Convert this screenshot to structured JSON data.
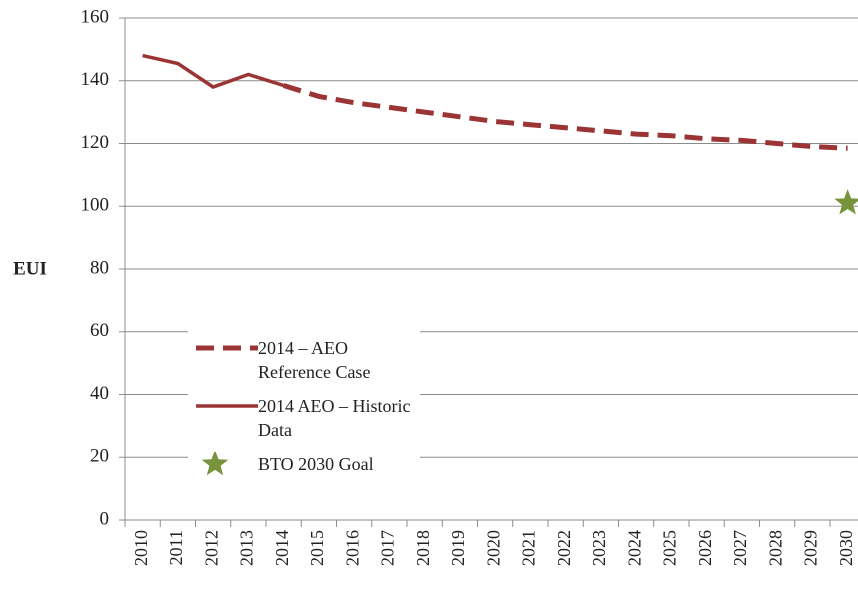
{
  "chart_data": {
    "type": "line",
    "ylabel": "EUI",
    "categories": [
      "2010",
      "2011",
      "2012",
      "2013",
      "2014",
      "2015",
      "2016",
      "2017",
      "2018",
      "2019",
      "2020",
      "2021",
      "2022",
      "2023",
      "2024",
      "2025",
      "2026",
      "2027",
      "2028",
      "2029",
      "2030"
    ],
    "series": [
      {
        "name": "2014 – AEO Reference Case",
        "color": "#9b3535",
        "dash": true,
        "values": [
          null,
          null,
          null,
          null,
          138.5,
          135,
          133,
          131.5,
          130,
          128.5,
          127,
          126,
          125,
          124,
          123,
          122.5,
          121.5,
          121,
          120,
          119,
          118.5
        ]
      },
      {
        "name": "2014 AEO – Historic Data",
        "color": "#9b3535",
        "dash": false,
        "values": [
          148,
          145.5,
          138,
          142,
          138.5,
          null,
          null,
          null,
          null,
          null,
          null,
          null,
          null,
          null,
          null,
          null,
          null,
          null,
          null,
          null,
          null
        ]
      },
      {
        "name": "BTO 2030 Goal",
        "color": "#77933c",
        "marker": "star",
        "values": [
          null,
          null,
          null,
          null,
          null,
          null,
          null,
          null,
          null,
          null,
          null,
          null,
          null,
          null,
          null,
          null,
          null,
          null,
          null,
          null,
          101
        ]
      }
    ],
    "ylim": [
      0,
      160
    ],
    "yticks": [
      0,
      20,
      40,
      60,
      80,
      100,
      120,
      140,
      160
    ],
    "grid": true
  }
}
